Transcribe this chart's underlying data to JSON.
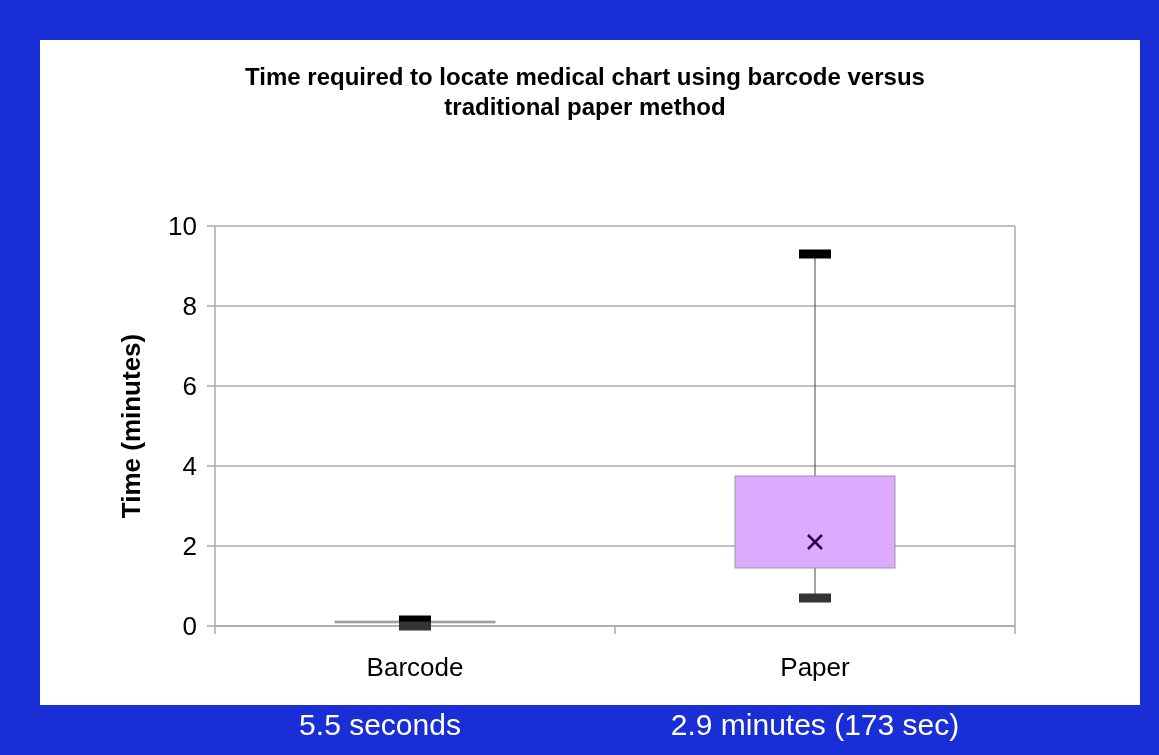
{
  "chart_data": {
    "type": "box",
    "title": "Time required to locate medical chart using barcode versus traditional paper method",
    "ylabel": "Time (minutes)",
    "categories": [
      "Barcode",
      "Paper"
    ],
    "boxes": [
      {
        "low": 0,
        "q1": 0.08,
        "median": 0.1,
        "q3": 0.12,
        "high": 0.15
      },
      {
        "low": 0.7,
        "q1": 1.45,
        "median": 2.1,
        "q3": 3.75,
        "high": 9.3
      }
    ],
    "colors": [
      "#a0a0a0",
      "#dcaaff"
    ],
    "ylim": [
      0,
      10
    ],
    "yticks": [
      0,
      2,
      4,
      6,
      8,
      10
    ],
    "grid": "y",
    "annotations": [
      "5.5 seconds",
      "2.9 minutes (173 sec)"
    ]
  }
}
